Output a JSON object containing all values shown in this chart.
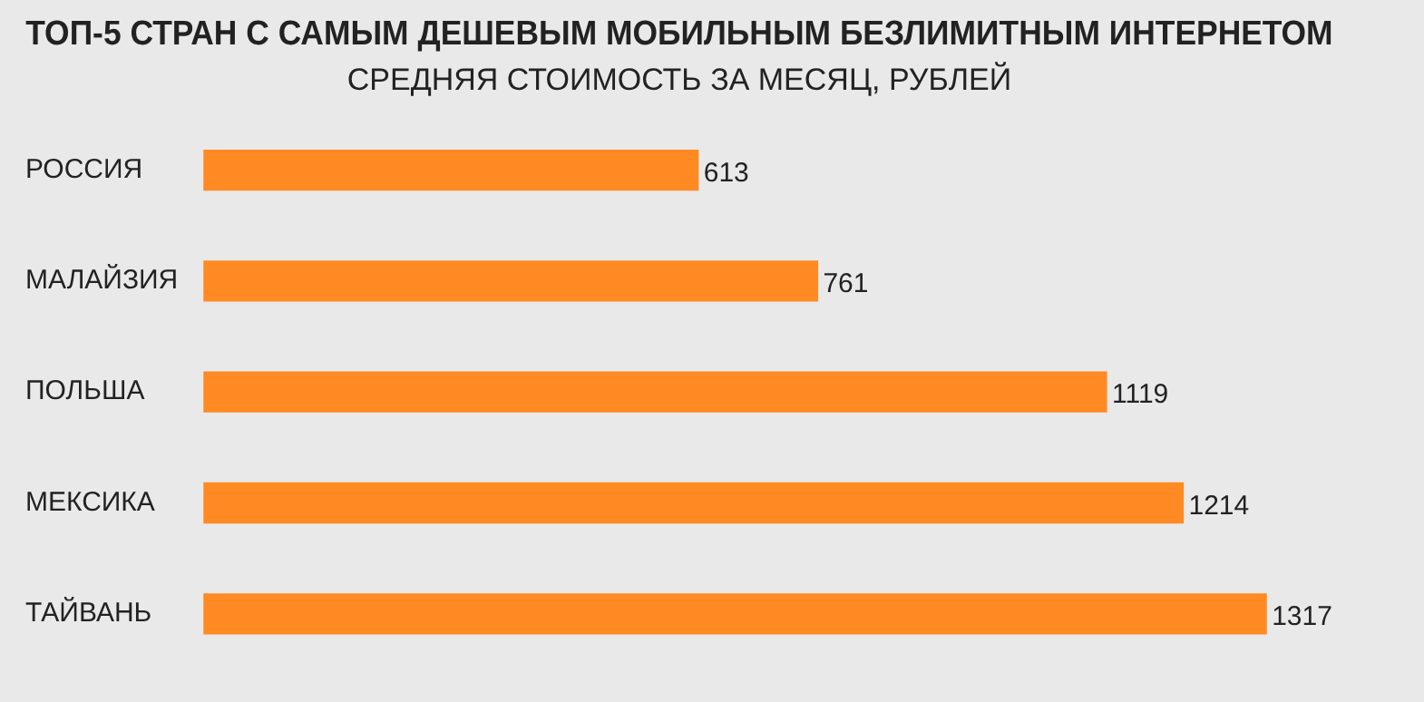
{
  "chart_data": {
    "type": "bar",
    "orientation": "horizontal",
    "title": "ТОП-5 СТРАН С САМЫМ ДЕШЕВЫМ МОБИЛЬНЫМ БЕЗЛИМИТНЫМ ИНТЕРНЕТОМ",
    "subtitle": "СРЕДНЯЯ СТОИМОСТЬ ЗА МЕСЯЦ, РУБЛЕЙ",
    "categories": [
      "РОССИЯ",
      "МАЛАЙЗИЯ",
      "ПОЛЬША",
      "МЕКСИКА",
      "ТАЙВАНЬ"
    ],
    "values": [
      613,
      761,
      1119,
      1214,
      1317
    ],
    "color": "#ff8a24",
    "relative": false,
    "data_labels": true,
    "grid": false,
    "legend": false
  }
}
